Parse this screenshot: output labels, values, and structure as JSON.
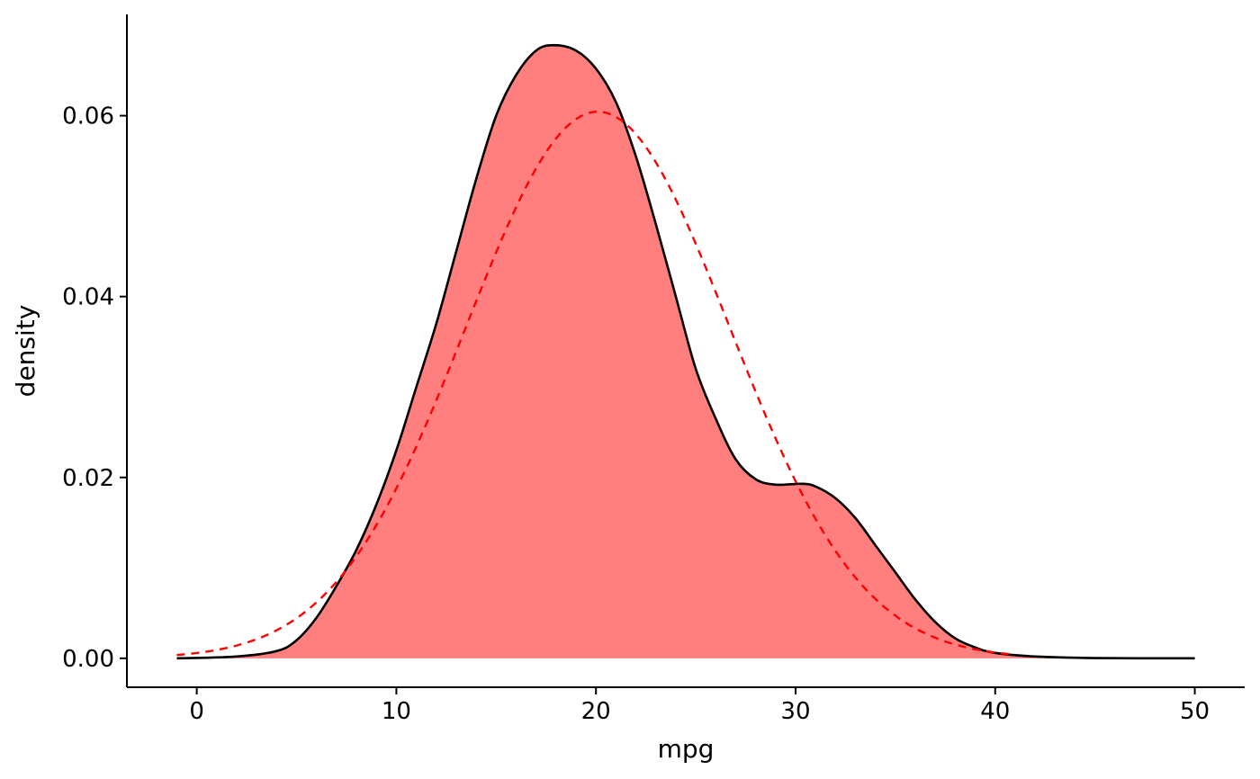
{
  "chart_data": {
    "type": "area",
    "xlabel": "mpg",
    "ylabel": "density",
    "xlim": [
      -3.5,
      52.5
    ],
    "ylim": [
      -0.0032,
      0.0712
    ],
    "x_ticks": [
      0,
      10,
      20,
      30,
      40,
      50
    ],
    "x_tick_labels": [
      "0",
      "10",
      "20",
      "30",
      "40",
      "50"
    ],
    "y_ticks": [
      0,
      0.02,
      0.04,
      0.06
    ],
    "y_tick_labels": [
      "0.00",
      "0.02",
      "0.04",
      "0.06"
    ],
    "grid": false,
    "legend": "none",
    "series": [
      {
        "kind": "density-area",
        "color": "#000000",
        "fill": "#ff7f7f",
        "points": [
          [
            -1,
            0.0
          ],
          [
            2,
            0.0002
          ],
          [
            4,
            0.0008
          ],
          [
            5,
            0.002
          ],
          [
            6,
            0.0045
          ],
          [
            7,
            0.008
          ],
          [
            8,
            0.012
          ],
          [
            9,
            0.017
          ],
          [
            10,
            0.023
          ],
          [
            11,
            0.03
          ],
          [
            12,
            0.037
          ],
          [
            13,
            0.045
          ],
          [
            14,
            0.053
          ],
          [
            15,
            0.06
          ],
          [
            16,
            0.0645
          ],
          [
            17,
            0.0672
          ],
          [
            17.9,
            0.0678
          ],
          [
            19,
            0.0672
          ],
          [
            20,
            0.0652
          ],
          [
            21,
            0.0615
          ],
          [
            22,
            0.0555
          ],
          [
            23,
            0.048
          ],
          [
            24,
            0.04
          ],
          [
            25,
            0.032
          ],
          [
            26,
            0.0265
          ],
          [
            27,
            0.022
          ],
          [
            28,
            0.0198
          ],
          [
            29,
            0.0192
          ],
          [
            30.3,
            0.0193
          ],
          [
            31,
            0.019
          ],
          [
            32,
            0.0177
          ],
          [
            33,
            0.0155
          ],
          [
            34,
            0.0125
          ],
          [
            35,
            0.0095
          ],
          [
            36,
            0.0065
          ],
          [
            37,
            0.004
          ],
          [
            38,
            0.0022
          ],
          [
            39,
            0.0012
          ],
          [
            40,
            0.0006
          ],
          [
            42,
            0.0002
          ],
          [
            45,
            3e-05
          ],
          [
            50,
            0.0
          ]
        ]
      },
      {
        "kind": "normal-curve",
        "color": "#ff0000",
        "dash": "dashed",
        "mean": 20.09,
        "sd": 6.6,
        "x_range": [
          -1,
          41
        ]
      }
    ]
  }
}
